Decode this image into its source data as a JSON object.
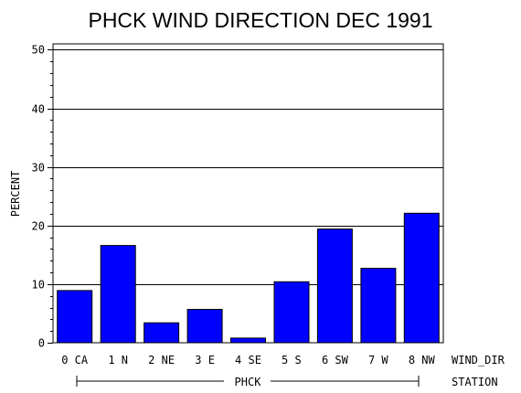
{
  "chart_data": {
    "type": "bar",
    "title": "PHCK WIND DIRECTION DEC 1991",
    "ylabel": "PERCENT",
    "xlabel": "WIND_DIR",
    "group_axis_label": "STATION",
    "group_label": "PHCK",
    "categories": [
      "0 CA",
      "1 N",
      "2 NE",
      "3 E",
      "4 SE",
      "5 S",
      "6 SW",
      "7 W",
      "8 NW"
    ],
    "values": [
      8.9,
      16.6,
      3.4,
      5.7,
      0.8,
      10.4,
      19.4,
      12.7,
      22.1
    ],
    "yticks": [
      0,
      10,
      20,
      30,
      40,
      50
    ],
    "ylim": [
      0,
      51
    ],
    "grid": true,
    "bar_color": "#0000ff",
    "grid_color": "#000000"
  }
}
